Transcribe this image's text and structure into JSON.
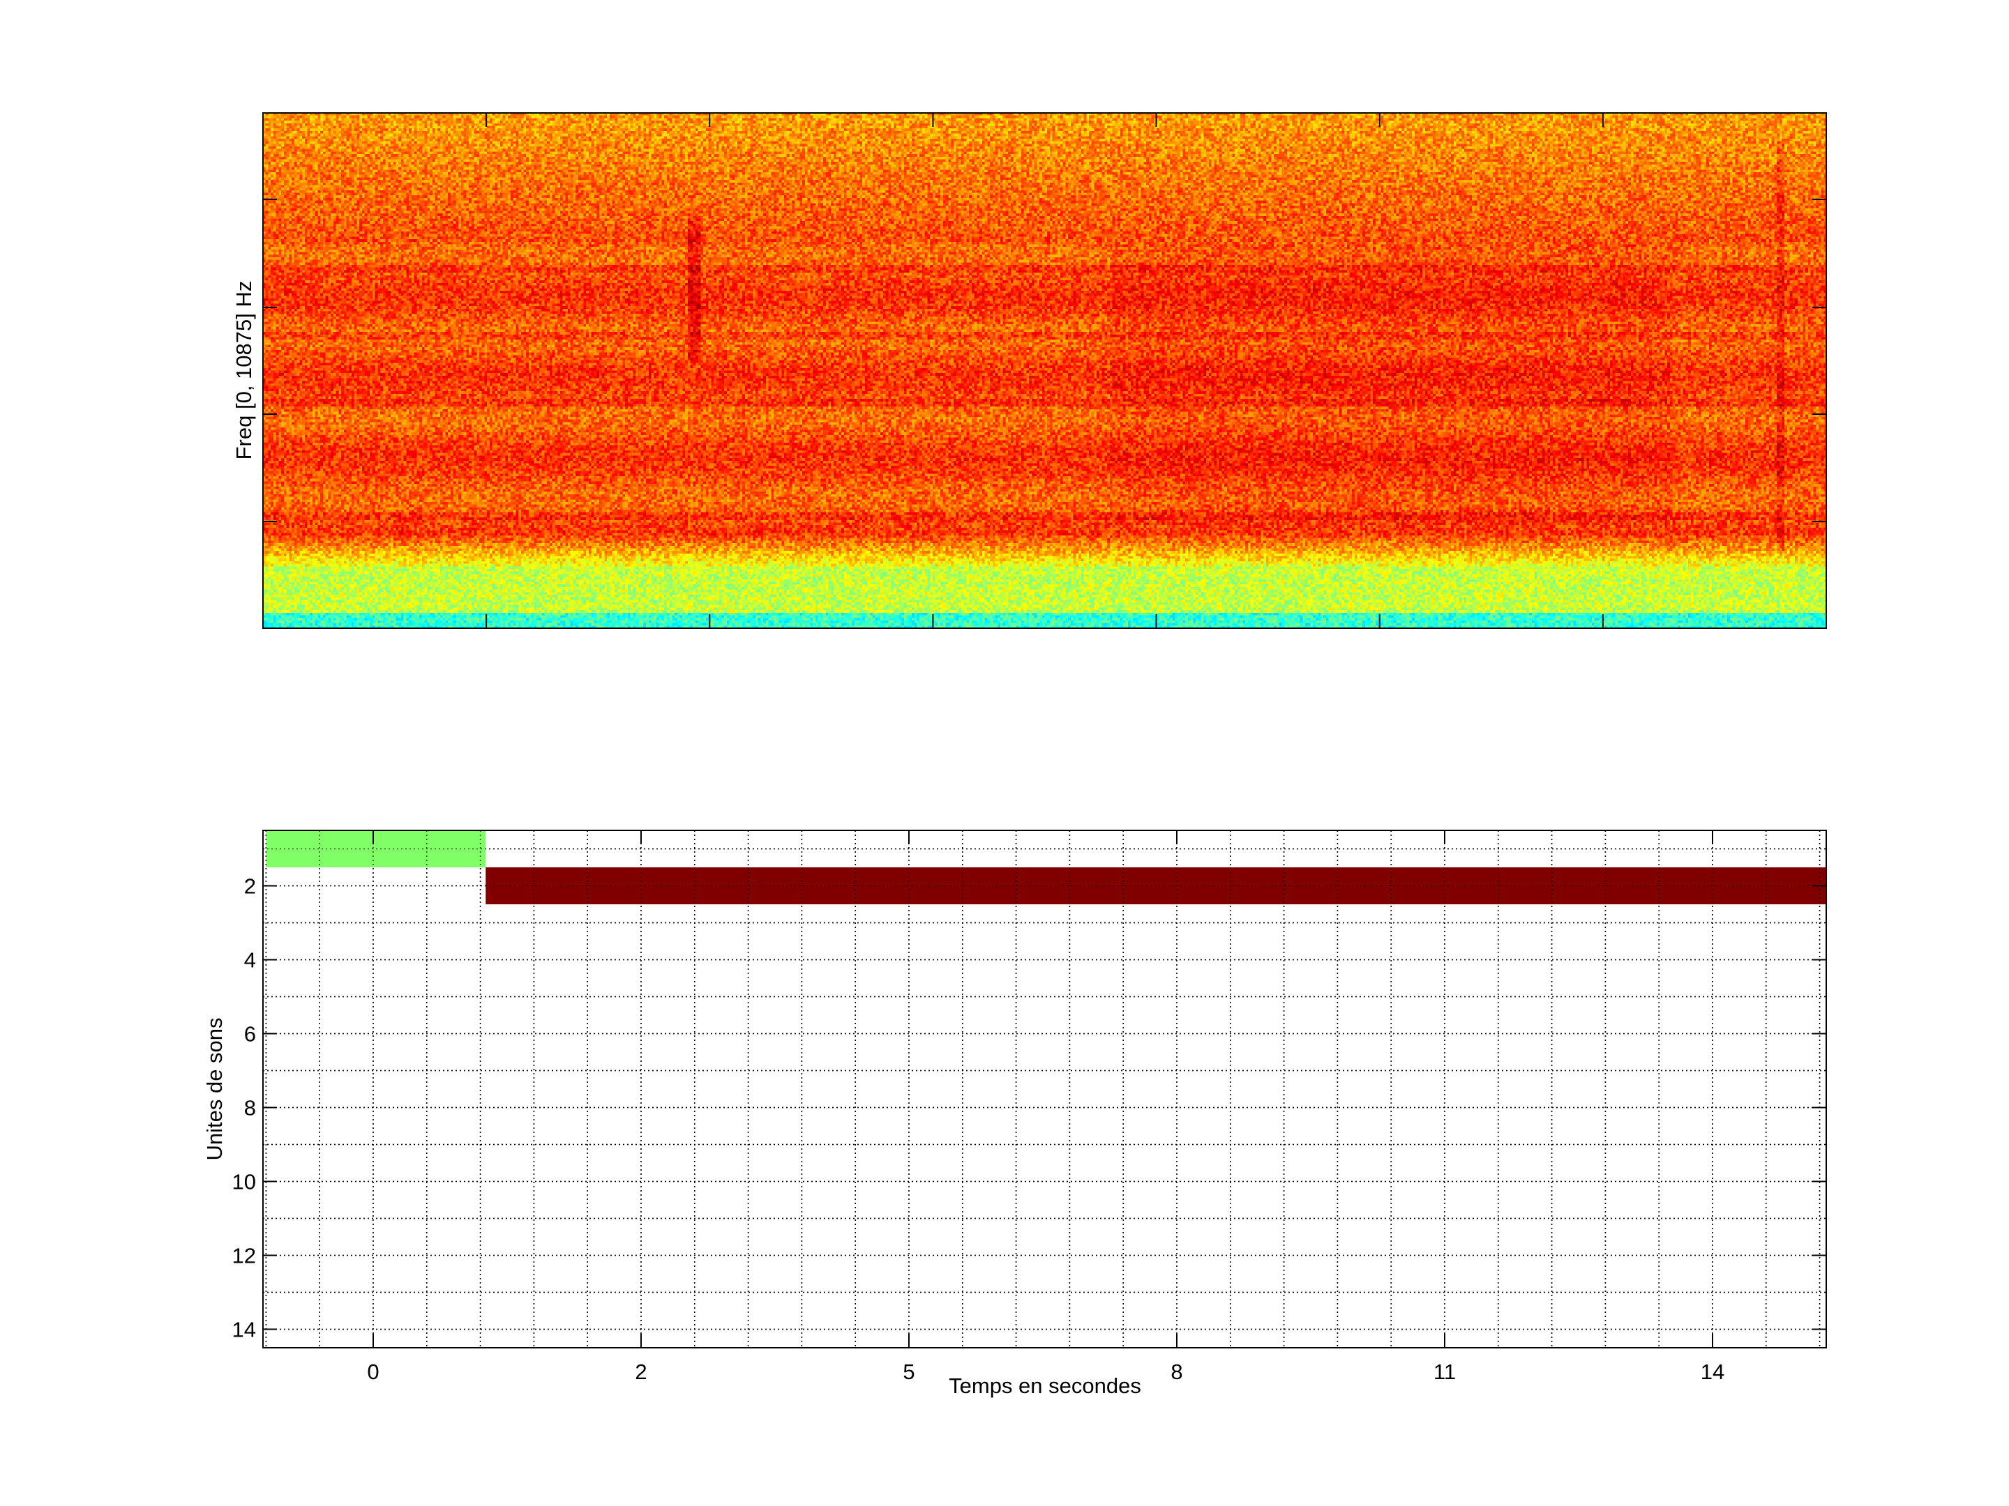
{
  "chart_data": [
    {
      "type": "heatmap",
      "title": "",
      "xlabel": "",
      "ylabel": "Freq [0, 10875] Hz",
      "colormap": "jet",
      "x_tick_labels": [],
      "y_tick_labels": []
    },
    {
      "type": "bar",
      "orientation": "horizontal-timeline",
      "title": "",
      "xlabel": "Temps en secondes",
      "ylabel": "Unites de sons",
      "x_tick_labels": [
        "0",
        "2",
        "5",
        "8",
        "11",
        "14"
      ],
      "y_ticks": [
        2,
        4,
        6,
        8,
        10,
        12,
        14
      ],
      "xlim": [
        -0.8,
        15.3
      ],
      "ylim": [
        0.5,
        14.5
      ],
      "y_reversed": true,
      "grid": true,
      "segments": [
        {
          "unit": 1,
          "start": -0.8,
          "end": 0.84,
          "color": "#80ff66"
        },
        {
          "unit": 2,
          "start": 0.84,
          "end": 15.3,
          "color": "#800000"
        }
      ]
    }
  ]
}
